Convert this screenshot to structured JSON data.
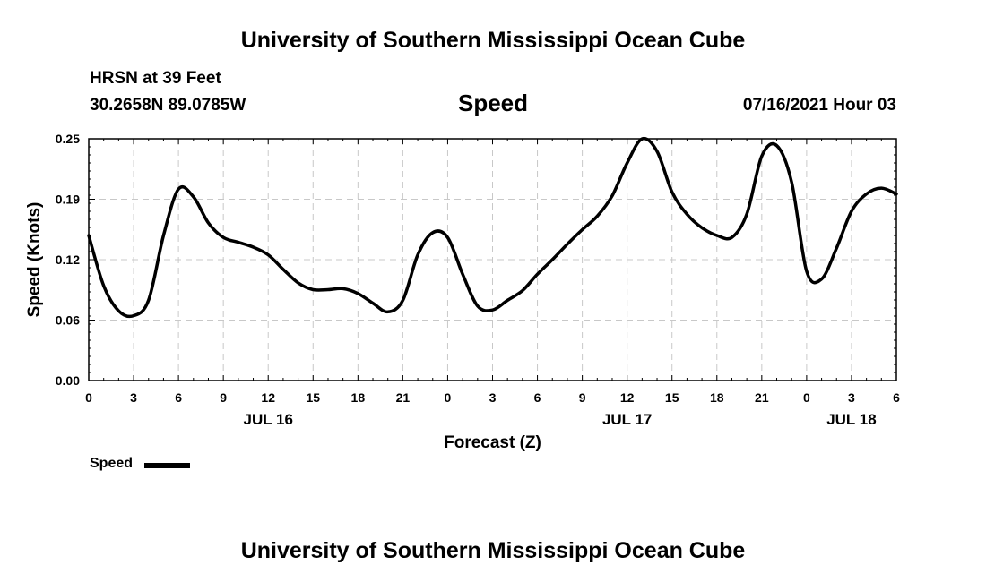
{
  "header": {
    "title_top": "University of Southern Mississippi Ocean Cube",
    "station": "HRSN at 39 Feet",
    "coords": "30.2658N  89.0785W",
    "datetime": "07/16/2021 Hour 03",
    "title_bottom": "University of Southern Mississippi Ocean Cube"
  },
  "chart_data": {
    "type": "line",
    "title": "Speed",
    "xlabel": "Forecast (Z)",
    "ylabel": "Speed (Knots)",
    "ylim": [
      0,
      0.25
    ],
    "xlim": [
      0,
      54
    ],
    "grid": true,
    "legend": "bottom-left",
    "y_ticks": [
      {
        "value": 0.0,
        "label": "0.00"
      },
      {
        "value": 0.0625,
        "label": "0.06"
      },
      {
        "value": 0.125,
        "label": "0.12"
      },
      {
        "value": 0.1875,
        "label": "0.19"
      },
      {
        "value": 0.25,
        "label": "0.25"
      }
    ],
    "x_ticks": [
      {
        "value": 0,
        "label": "0"
      },
      {
        "value": 3,
        "label": "3"
      },
      {
        "value": 6,
        "label": "6"
      },
      {
        "value": 9,
        "label": "9"
      },
      {
        "value": 12,
        "label": "12"
      },
      {
        "value": 15,
        "label": "15"
      },
      {
        "value": 18,
        "label": "18"
      },
      {
        "value": 21,
        "label": "21"
      },
      {
        "value": 24,
        "label": "0"
      },
      {
        "value": 27,
        "label": "3"
      },
      {
        "value": 30,
        "label": "6"
      },
      {
        "value": 33,
        "label": "9"
      },
      {
        "value": 36,
        "label": "12"
      },
      {
        "value": 39,
        "label": "15"
      },
      {
        "value": 42,
        "label": "18"
      },
      {
        "value": 45,
        "label": "21"
      },
      {
        "value": 48,
        "label": "0"
      },
      {
        "value": 51,
        "label": "3"
      },
      {
        "value": 54,
        "label": "6"
      }
    ],
    "day_labels": [
      {
        "value": 12,
        "label": "JUL 16"
      },
      {
        "value": 36,
        "label": "JUL 17"
      },
      {
        "value": 51,
        "label": "JUL 18"
      }
    ],
    "series": [
      {
        "name": "Speed",
        "color": "#000000",
        "x": [
          0,
          1,
          2,
          3,
          4,
          5,
          6,
          7,
          8,
          9,
          10,
          11,
          12,
          13,
          14,
          15,
          16,
          17,
          18,
          19,
          20,
          21,
          22,
          23,
          24,
          25,
          26,
          27,
          28,
          29,
          30,
          31,
          32,
          33,
          34,
          35,
          36,
          37,
          38,
          39,
          40,
          41,
          42,
          43,
          44,
          45,
          46,
          47,
          48,
          49,
          50,
          51,
          52,
          53,
          54
        ],
        "values": [
          0.15,
          0.098,
          0.072,
          0.067,
          0.083,
          0.15,
          0.198,
          0.19,
          0.163,
          0.148,
          0.143,
          0.138,
          0.13,
          0.115,
          0.101,
          0.094,
          0.094,
          0.095,
          0.09,
          0.08,
          0.071,
          0.083,
          0.13,
          0.153,
          0.148,
          0.11,
          0.077,
          0.073,
          0.083,
          0.093,
          0.11,
          0.125,
          0.141,
          0.156,
          0.17,
          0.191,
          0.225,
          0.25,
          0.237,
          0.195,
          0.172,
          0.158,
          0.15,
          0.148,
          0.172,
          0.232,
          0.243,
          0.205,
          0.113,
          0.105,
          0.137,
          0.175,
          0.193,
          0.199,
          0.193
        ]
      }
    ]
  }
}
